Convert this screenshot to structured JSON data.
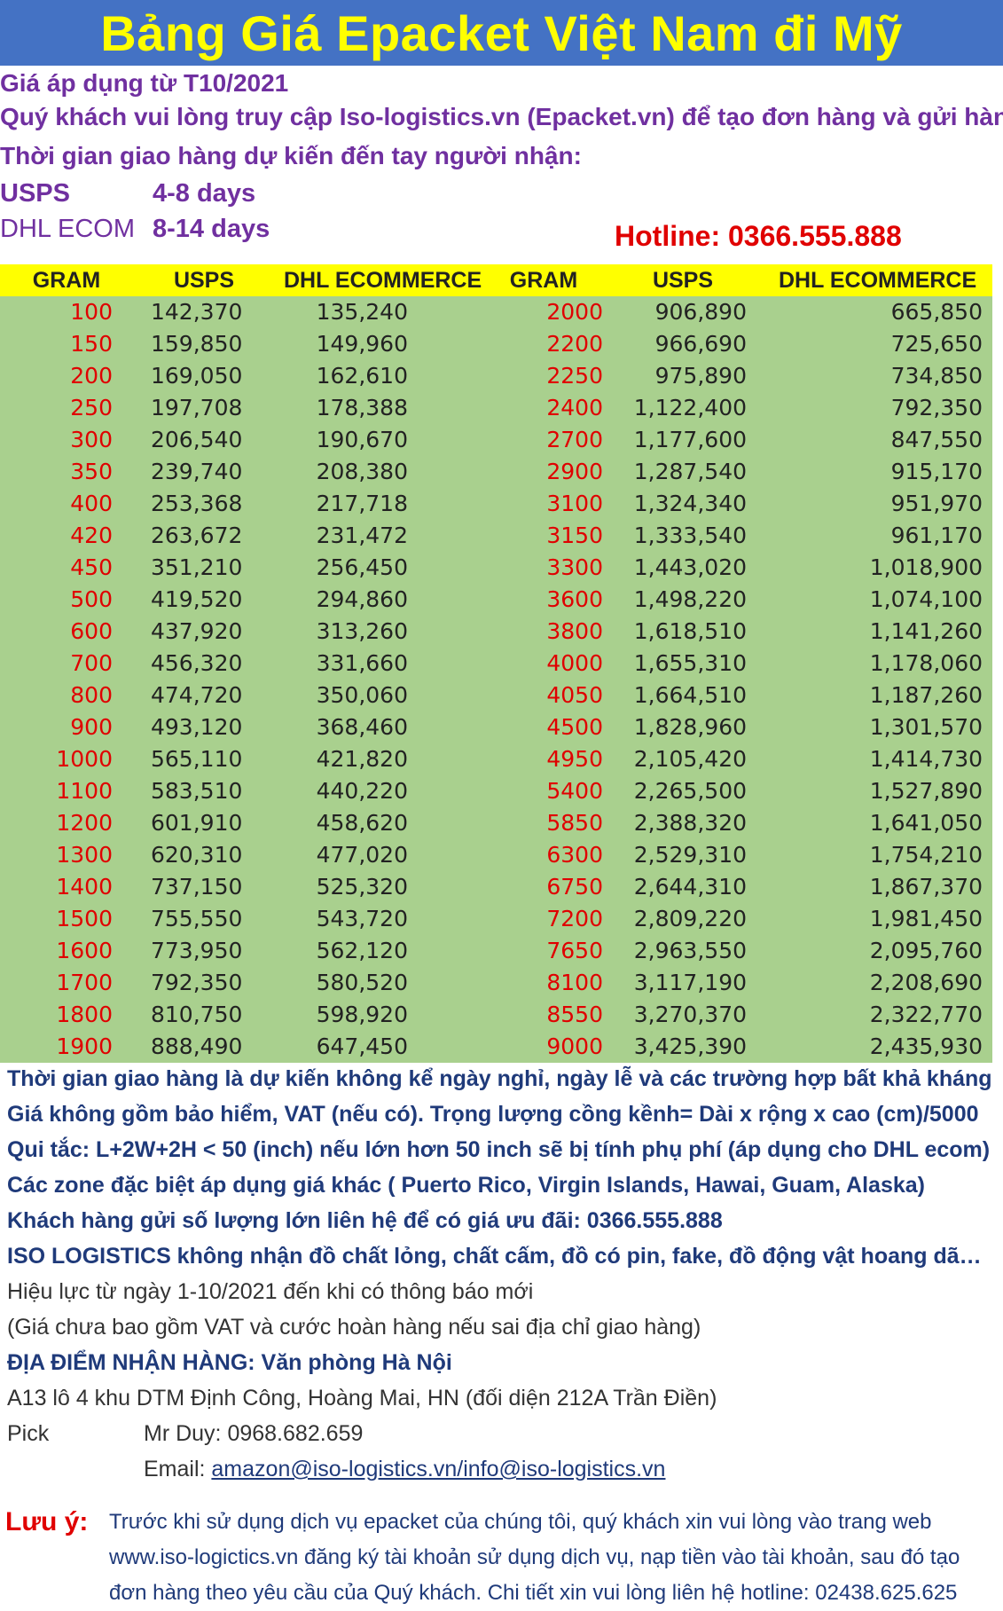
{
  "title": "Bảng Giá Epacket Việt Nam đi Mỹ",
  "intro": [
    "Giá áp dụng từ T10/2021",
    "Quý khách vui lòng truy cập Iso-logistics.vn (Epacket.vn) để tạo đơn hàng và gửi hàng",
    "Thời gian giao hàng dự kiến đến tay người nhận:"
  ],
  "services": [
    {
      "name": "USPS",
      "days": "4-8 days"
    },
    {
      "name": "DHL ECOM",
      "days": "8-14 days"
    }
  ],
  "hotline": "Hotline: 0366.555.888",
  "table": {
    "headers": [
      "GRAM",
      "USPS",
      "DHL ECOMMERCE",
      "GRAM",
      "USPS",
      "DHL ECOMMERCE"
    ],
    "rows": [
      [
        "100",
        "142,370",
        "135,240",
        "2000",
        "906,890",
        "665,850"
      ],
      [
        "150",
        "159,850",
        "149,960",
        "2200",
        "966,690",
        "725,650"
      ],
      [
        "200",
        "169,050",
        "162,610",
        "2250",
        "975,890",
        "734,850"
      ],
      [
        "250",
        "197,708",
        "178,388",
        "2400",
        "1,122,400",
        "792,350"
      ],
      [
        "300",
        "206,540",
        "190,670",
        "2700",
        "1,177,600",
        "847,550"
      ],
      [
        "350",
        "239,740",
        "208,380",
        "2900",
        "1,287,540",
        "915,170"
      ],
      [
        "400",
        "253,368",
        "217,718",
        "3100",
        "1,324,340",
        "951,970"
      ],
      [
        "420",
        "263,672",
        "231,472",
        "3150",
        "1,333,540",
        "961,170"
      ],
      [
        "450",
        "351,210",
        "256,450",
        "3300",
        "1,443,020",
        "1,018,900"
      ],
      [
        "500",
        "419,520",
        "294,860",
        "3600",
        "1,498,220",
        "1,074,100"
      ],
      [
        "600",
        "437,920",
        "313,260",
        "3800",
        "1,618,510",
        "1,141,260"
      ],
      [
        "700",
        "456,320",
        "331,660",
        "4000",
        "1,655,310",
        "1,178,060"
      ],
      [
        "800",
        "474,720",
        "350,060",
        "4050",
        "1,664,510",
        "1,187,260"
      ],
      [
        "900",
        "493,120",
        "368,460",
        "4500",
        "1,828,960",
        "1,301,570"
      ],
      [
        "1000",
        "565,110",
        "421,820",
        "4950",
        "2,105,420",
        "1,414,730"
      ],
      [
        "1100",
        "583,510",
        "440,220",
        "5400",
        "2,265,500",
        "1,527,890"
      ],
      [
        "1200",
        "601,910",
        "458,620",
        "5850",
        "2,388,320",
        "1,641,050"
      ],
      [
        "1300",
        "620,310",
        "477,020",
        "6300",
        "2,529,310",
        "1,754,210"
      ],
      [
        "1400",
        "737,150",
        "525,320",
        "6750",
        "2,644,310",
        "1,867,370"
      ],
      [
        "1500",
        "755,550",
        "543,720",
        "7200",
        "2,809,220",
        "1,981,450"
      ],
      [
        "1600",
        "773,950",
        "562,120",
        "7650",
        "2,963,550",
        "2,095,760"
      ],
      [
        "1700",
        "792,350",
        "580,520",
        "8100",
        "3,117,190",
        "2,208,690"
      ],
      [
        "1800",
        "810,750",
        "598,920",
        "8550",
        "3,270,370",
        "2,322,770"
      ],
      [
        "1900",
        "888,490",
        "647,450",
        "9000",
        "3,425,390",
        "2,435,930"
      ]
    ]
  },
  "notes_bold": [
    "Thời gian giao hàng là dự kiến không kể ngày nghỉ, ngày lễ và các trường hợp bất khả kháng",
    "Giá không gồm bảo hiểm, VAT (nếu có). Trọng lượng cồng kềnh= Dài x rộng x cao (cm)/5000",
    "Qui tắc:  L+2W+2H < 50 (inch) nếu lớn hơn 50 inch sẽ bị tính phụ phí (áp dụng cho DHL ecom)",
    "Các zone đặc biệt áp dụng giá khác ( Puerto Rico, Virgin Islands, Hawai, Guam, Alaska)",
    "Khách hàng gửi số lượng lớn liên hệ để có giá ưu đãi: 0366.555.888",
    "ISO LOGISTICS không nhận đồ chất lỏng, chất cấm, đồ có pin, fake, đồ động vật hoang dã…"
  ],
  "notes_plain": [
    "Hiệu lực từ ngày 1-10/2021 đến khi có thông báo mới",
    "(Giá chưa bao gồm VAT và cước hoàn hàng nếu sai địa chỉ giao hàng)"
  ],
  "pickup": {
    "heading": "ĐỊA ĐIỂM NHẬN HÀNG: Văn phòng Hà Nội",
    "address": "A13 lô 4 khu DTM Định Công, Hoàng Mai, HN (đối diện 212A Trần Điền)",
    "pick_label": "Pick",
    "contact": "Mr Duy:  0968.682.659",
    "email_label": "Email: ",
    "email": "amazon@iso-logistics.vn/info@iso-logistics.vn"
  },
  "note_footer": {
    "label": "Lưu ý:",
    "text": "Trước khi sử dụng dịch vụ epacket của chúng tôi, quý khách xin vui lòng vào trang web www.iso-logictics.vn đăng ký tài khoản sử dụng dịch vụ, nạp tiền vào tài khoản, sau đó tạo đơn hàng theo yêu cầu của Quý khách. Chi tiết xin vui lòng liên hệ hotline: 02438.625.625"
  },
  "colors": {
    "banner": "#4472c4",
    "title": "#ffff00",
    "header_row": "#ffff00",
    "table_body": "#a9d08e",
    "gram_text": "#e00000",
    "intro_text": "#7030a0"
  }
}
